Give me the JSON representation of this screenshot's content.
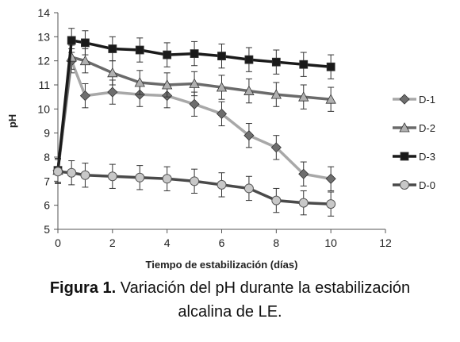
{
  "chart_data": {
    "type": "line",
    "xlabel": "Tiempo de estabilización  (días)",
    "ylabel": "pH",
    "xlim": [
      0,
      12
    ],
    "ylim": [
      5,
      14
    ],
    "x_ticks": [
      "0",
      "2",
      "4",
      "6",
      "8",
      "10",
      "12"
    ],
    "y_ticks": [
      "5",
      "6",
      "7",
      "8",
      "9",
      "10",
      "11",
      "12",
      "13",
      "14"
    ],
    "grid": false,
    "error_bars": true,
    "legend_position": "right",
    "series": [
      {
        "name": "D-1",
        "marker": "diamond",
        "line_color": "#a8a8a8",
        "marker_color": "#6e6e6e",
        "x": [
          0,
          0.5,
          1,
          2,
          3,
          4,
          5,
          6,
          7,
          8,
          9,
          10
        ],
        "y": [
          7.45,
          12.0,
          10.55,
          10.7,
          10.6,
          10.55,
          10.2,
          9.8,
          8.9,
          8.4,
          7.3,
          7.1
        ],
        "error": [
          0.5,
          0.5,
          0.5,
          0.5,
          0.5,
          0.5,
          0.5,
          0.5,
          0.5,
          0.5,
          0.5,
          0.5
        ]
      },
      {
        "name": "D-2",
        "marker": "triangle",
        "line_color": "#6a6a6a",
        "marker_color": "#b0b0b0",
        "x": [
          0,
          0.5,
          1,
          2,
          3,
          4,
          5,
          6,
          7,
          8,
          9,
          10
        ],
        "y": [
          7.45,
          12.15,
          12.0,
          11.5,
          11.1,
          11.0,
          11.05,
          10.9,
          10.75,
          10.6,
          10.5,
          10.4
        ],
        "error": [
          0.5,
          0.5,
          0.5,
          0.5,
          0.5,
          0.5,
          0.5,
          0.5,
          0.5,
          0.5,
          0.5,
          0.5
        ]
      },
      {
        "name": "D-3",
        "marker": "square",
        "line_color": "#1a1a1a",
        "marker_color": "#1a1a1a",
        "x": [
          0,
          0.5,
          1,
          2,
          3,
          4,
          5,
          6,
          7,
          8,
          9,
          10
        ],
        "y": [
          7.45,
          12.85,
          12.75,
          12.5,
          12.45,
          12.25,
          12.3,
          12.2,
          12.05,
          11.95,
          11.85,
          11.75
        ],
        "error": [
          0.5,
          0.5,
          0.5,
          0.5,
          0.5,
          0.5,
          0.5,
          0.5,
          0.5,
          0.5,
          0.5,
          0.5
        ]
      },
      {
        "name": "D-0",
        "marker": "circle",
        "line_color": "#4a4a4a",
        "marker_color": "#c8c8c8",
        "x": [
          0,
          0.5,
          1,
          2,
          3,
          4,
          5,
          6,
          7,
          8,
          9,
          10
        ],
        "y": [
          7.4,
          7.35,
          7.25,
          7.2,
          7.15,
          7.1,
          7.0,
          6.85,
          6.7,
          6.2,
          6.1,
          6.05
        ],
        "error": [
          0.5,
          0.5,
          0.5,
          0.5,
          0.5,
          0.5,
          0.5,
          0.5,
          0.5,
          0.5,
          0.5,
          0.5
        ]
      }
    ]
  },
  "caption": {
    "label": "Figura 1.",
    "line1": " Variación del pH durante la estabilización",
    "line2": "alcalina de LE."
  }
}
